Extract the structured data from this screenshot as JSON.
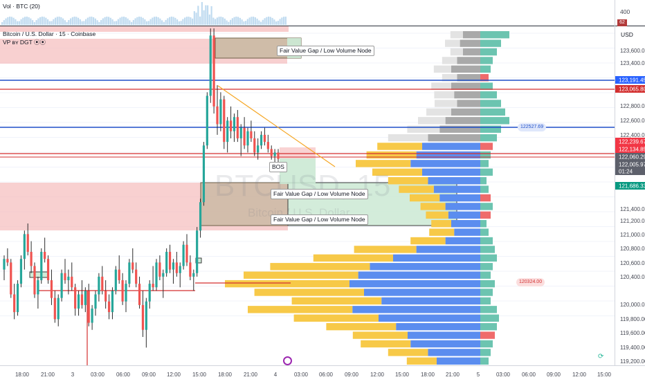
{
  "header": {
    "volume_label": "Vol · BTC (20)",
    "title": "Bitcoin / U.S. Dollar · 15 · Coinbase",
    "indicator": "VP ʙʏ DGT ⦿⦿",
    "watermark_symbol": "BTCUSD, 15",
    "watermark_name": "Bitcoin / U.S. Dollar"
  },
  "price_axis": {
    "currency": "USD",
    "volume_ticks": [
      "400"
    ],
    "volume_badge": "62",
    "ticks": [
      "123,600.00",
      "123,400.00",
      "122,800.00",
      "122,600.00",
      "122,400.00",
      "121,400.00",
      "121,200.00",
      "121,000.00",
      "120,800.00",
      "120,600.00",
      "120,400.00",
      "120,000.00",
      "119,800.00",
      "119,600.00",
      "119,400.00",
      "119,200.00"
    ],
    "tags": [
      {
        "label": "123,191.45",
        "color": "#2962ff"
      },
      {
        "label": "123,065.80",
        "color": "#d32f2f"
      },
      {
        "label": "122,239.67",
        "color": "#f23645"
      },
      {
        "label": "122,134.85",
        "color": "#f23645"
      },
      {
        "label": "122,060.29",
        "color": "#5d606b"
      },
      {
        "label": "122,005.97",
        "color": "#5d606b"
      },
      {
        "label": "01:24",
        "color": "#5d606b"
      },
      {
        "label": "121,686.33",
        "color": "#089981"
      }
    ]
  },
  "time_axis": {
    "ticks": [
      "18:00",
      "21:00",
      "3",
      "03:00",
      "06:00",
      "09:00",
      "12:00",
      "15:00",
      "18:00",
      "21:00",
      "4",
      "03:00",
      "06:00",
      "09:00",
      "12:00",
      "15:00",
      "18:00",
      "21:00",
      "5",
      "03:00",
      "06:00",
      "09:00",
      "12:00",
      "15:00"
    ]
  },
  "annotations": {
    "fvg_top": "Fair Value Gap / Low Volume Node",
    "fvg_mid": "Fair Value Gap / Low Volume Node",
    "fvg_low": "Fair Value Gap / Low Volume Node",
    "bos": "BOS",
    "level_high": "122527.69",
    "level_low": "120324.00"
  },
  "colors": {
    "up": "#26a69a",
    "down": "#ef5350",
    "vp_buy": "#5b8def",
    "vp_sell": "#f7c948",
    "vp_hist_green": "#6cc4b0",
    "vp_hist_red": "#ef6b6b",
    "vp_gray": "#b8b8b8",
    "blue_line": "#1e4fc8",
    "red_line": "#d32f2f",
    "trend_line": "#f5a623",
    "fvg_red": "#f6c0c0",
    "fvg_green": "#cbe9d4",
    "fvg_brown": "#c2b59b"
  },
  "chart_data": {
    "type": "candlestick",
    "title": "Bitcoin / U.S. Dollar · 15 · Coinbase",
    "timeframe": "15",
    "y_unit": "USD",
    "ylim": [
      119150,
      123930
    ],
    "levels": {
      "blue_high": 123191.45,
      "red_high": 123065.8,
      "blue_mid": 122527.69,
      "red_low": 122134.85,
      "fvg_top": [
        123600,
        123880
      ],
      "fvg_bottom": [
        121160,
        121720
      ],
      "red_low_level": 120324.0
    },
    "candles": [
      [
        120500,
        120700,
        120350,
        120650
      ],
      [
        120650,
        120800,
        120550,
        120600
      ],
      [
        120600,
        120650,
        120100,
        120150
      ],
      [
        120150,
        120300,
        119800,
        119900
      ],
      [
        119900,
        120350,
        119850,
        120300
      ],
      [
        120300,
        120700,
        120250,
        120650
      ],
      [
        120650,
        121050,
        120500,
        121000
      ],
      [
        121000,
        121150,
        120700,
        120750
      ],
      [
        120750,
        120900,
        120450,
        120550
      ],
      [
        120550,
        120600,
        120100,
        120150
      ],
      [
        120150,
        120400,
        119950,
        120350
      ],
      [
        120350,
        120800,
        120300,
        120750
      ],
      [
        120750,
        120950,
        120600,
        120650
      ],
      [
        120650,
        120700,
        120300,
        120350
      ],
      [
        120350,
        120500,
        120000,
        120100
      ],
      [
        120100,
        120200,
        119750,
        119800
      ],
      [
        119800,
        120150,
        119700,
        120100
      ],
      [
        120100,
        120500,
        120050,
        120450
      ],
      [
        120450,
        120650,
        120300,
        120350
      ],
      [
        120350,
        120500,
        120150,
        120400
      ],
      [
        120400,
        120600,
        120200,
        120250
      ],
      [
        120250,
        120300,
        119850,
        119950
      ],
      [
        119950,
        120200,
        119850,
        120150
      ],
      [
        120150,
        120350,
        119950,
        120000
      ],
      [
        120000,
        120250,
        119900,
        120200
      ],
      [
        120200,
        120300,
        119700,
        119750
      ],
      [
        119750,
        120000,
        119650,
        119950
      ],
      [
        119950,
        120200,
        119850,
        120150
      ],
      [
        120150,
        120450,
        120050,
        120400
      ],
      [
        120400,
        120550,
        120150,
        120200
      ],
      [
        120200,
        120350,
        119950,
        120050
      ],
      [
        120050,
        120150,
        119800,
        119900
      ],
      [
        119900,
        120250,
        119800,
        120200
      ],
      [
        120200,
        120550,
        120150,
        120500
      ],
      [
        120500,
        120700,
        120300,
        120350
      ],
      [
        120350,
        120450,
        120000,
        120050
      ],
      [
        120050,
        120350,
        119900,
        120300
      ],
      [
        120300,
        120650,
        120250,
        120600
      ],
      [
        120600,
        120800,
        120450,
        120500
      ],
      [
        120500,
        120600,
        120250,
        120300
      ],
      [
        120300,
        120400,
        119950,
        120000
      ],
      [
        120000,
        120200,
        119550,
        119650
      ],
      [
        119650,
        120100,
        119400,
        120050
      ],
      [
        120050,
        120350,
        119950,
        120300
      ],
      [
        120300,
        120550,
        120200,
        120250
      ],
      [
        120250,
        120650,
        120200,
        120600
      ],
      [
        120600,
        120700,
        120350,
        120400
      ],
      [
        120400,
        120500,
        120100,
        120450
      ],
      [
        120450,
        120800,
        120400,
        120750
      ],
      [
        120750,
        120850,
        120450,
        120500
      ],
      [
        120500,
        120650,
        120300,
        120600
      ],
      [
        120600,
        120750,
        120400,
        120450
      ],
      [
        120450,
        120600,
        120250,
        120550
      ],
      [
        120550,
        120900,
        120500,
        120850
      ],
      [
        120850,
        121000,
        120550,
        120600
      ],
      [
        120600,
        120700,
        120350,
        120400
      ],
      [
        120400,
        120500,
        120200,
        120450
      ],
      [
        120450,
        121100,
        120400,
        121050
      ],
      [
        121050,
        121500,
        120950,
        121450
      ],
      [
        121450,
        122300,
        121400,
        122250
      ],
      [
        122250,
        123000,
        122200,
        122950
      ],
      [
        122950,
        123900,
        122850,
        123800
      ],
      [
        123800,
        123900,
        122700,
        122800
      ],
      [
        122800,
        123100,
        122400,
        122550
      ],
      [
        122550,
        123000,
        122450,
        122900
      ],
      [
        122900,
        122950,
        122200,
        122300
      ],
      [
        122300,
        122650,
        122150,
        122600
      ],
      [
        122600,
        122800,
        122350,
        122450
      ],
      [
        122450,
        122700,
        122300,
        122650
      ],
      [
        122650,
        122750,
        122300,
        122350
      ],
      [
        122350,
        122550,
        122100,
        122500
      ],
      [
        122500,
        122650,
        122200,
        122250
      ],
      [
        122250,
        122500,
        122150,
        122450
      ],
      [
        122450,
        122600,
        122300,
        122350
      ],
      [
        122350,
        122450,
        122100,
        122150
      ],
      [
        122150,
        122350,
        122050,
        122250
      ],
      [
        122250,
        122450,
        122200,
        122400
      ],
      [
        122400,
        122500,
        122250,
        122300
      ],
      [
        122300,
        122400,
        122150,
        122200
      ],
      [
        122200,
        122250,
        122050,
        122100
      ],
      [
        122100,
        122200,
        122000,
        122150
      ],
      [
        122150,
        122200,
        122000,
        122060
      ]
    ],
    "volume_profile": {
      "buy": [
        0.06,
        0.07,
        0.06,
        0.08,
        0.1,
        0.08,
        0.1,
        0.09,
        0.08,
        0.1,
        0.12,
        0.14,
        0.18,
        0.2,
        0.22,
        0.24,
        0.2,
        0.18,
        0.16,
        0.14,
        0.12,
        0.11,
        0.1,
        0.09,
        0.12,
        0.22,
        0.3,
        0.38,
        0.42,
        0.45,
        0.4,
        0.34,
        0.44,
        0.35,
        0.29,
        0.25,
        0.24,
        0.18,
        0.15
      ],
      "sell": [
        0.05,
        0.06,
        0.05,
        0.06,
        0.07,
        0.06,
        0.08,
        0.08,
        0.09,
        0.1,
        0.11,
        0.13,
        0.16,
        0.18,
        0.2,
        0.22,
        0.2,
        0.16,
        0.14,
        0.12,
        0.1,
        0.09,
        0.08,
        0.1,
        0.14,
        0.25,
        0.32,
        0.4,
        0.46,
        0.5,
        0.44,
        0.36,
        0.42,
        0.34,
        0.28,
        0.22,
        0.2,
        0.16,
        0.12
      ],
      "hist": [
        0.14,
        0.1,
        0.08,
        0.06,
        0.05,
        0.04,
        0.06,
        0.08,
        0.1,
        0.12,
        0.14,
        0.1,
        0.08,
        0.06,
        0.05,
        0.04,
        0.06,
        0.03,
        0.04,
        0.05,
        0.06,
        0.05,
        0.03,
        0.04,
        0.06,
        0.07,
        0.08,
        0.06,
        0.05,
        0.07,
        0.06,
        0.05,
        0.08,
        0.09,
        0.08,
        0.07,
        0.06,
        0.05,
        0.04
      ]
    }
  }
}
